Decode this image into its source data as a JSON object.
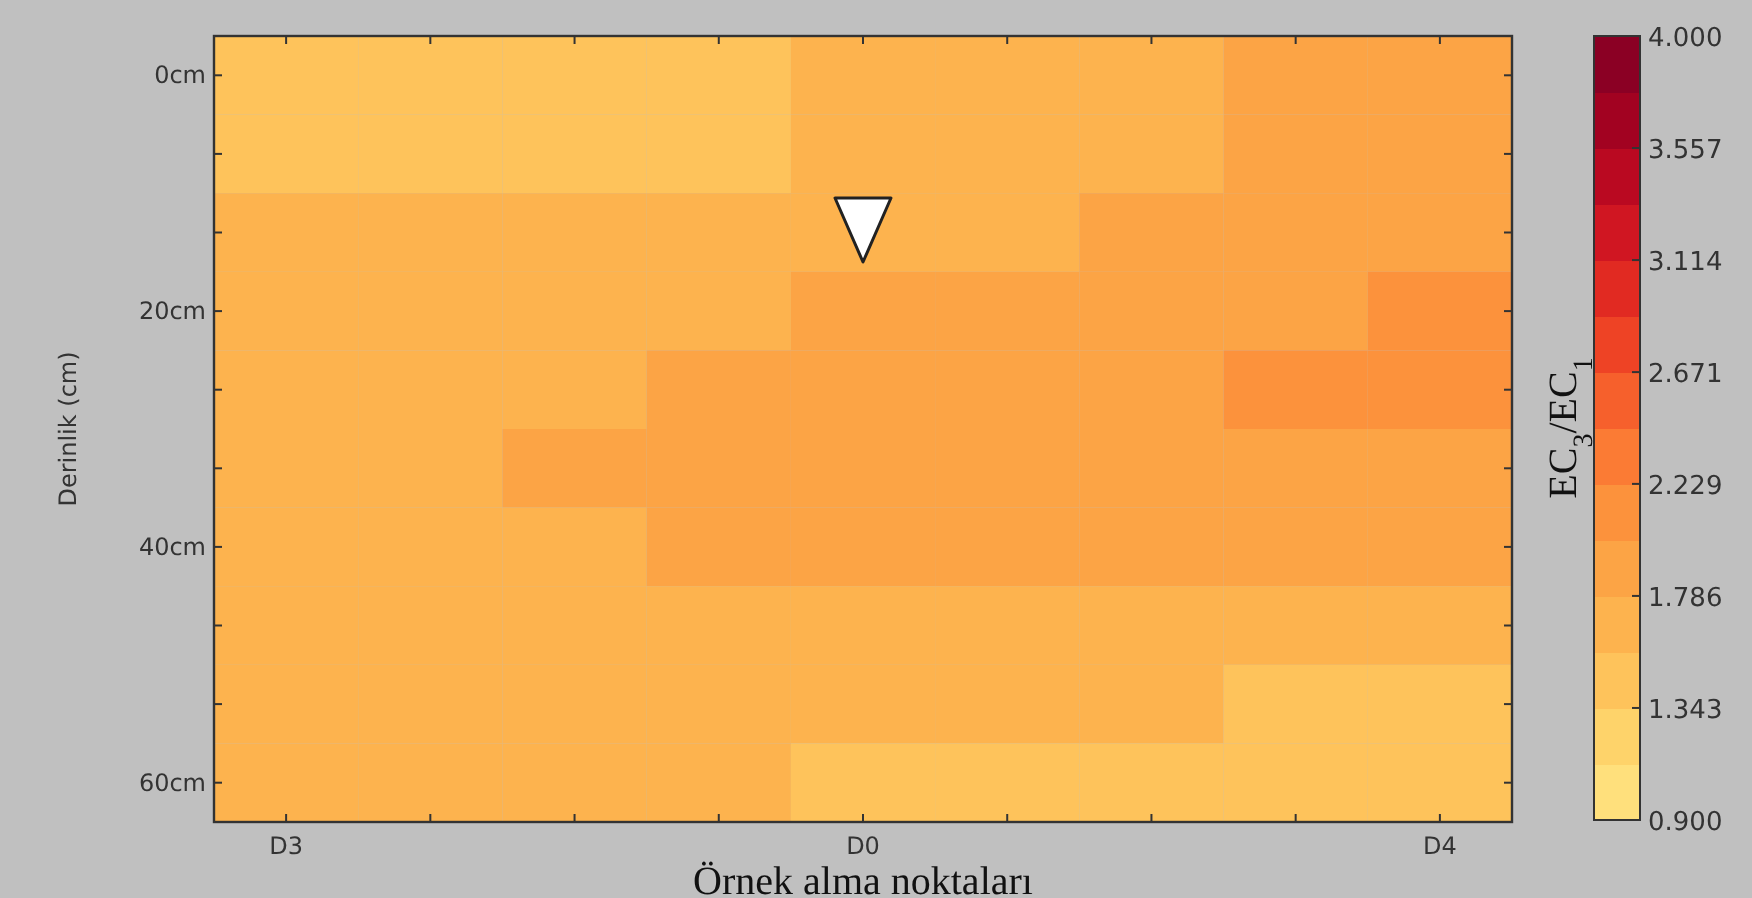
{
  "chart_data": {
    "type": "heatmap",
    "xlabel": "Örnek alma noktaları",
    "ylabel": "Derinlik (cm)",
    "clabel": "EC$_{3}$/EC$_{1}$",
    "categories": [
      "D3",
      null,
      null,
      null,
      "D0",
      null,
      null,
      null,
      "D4"
    ],
    "y_categories": [
      "0cm",
      null,
      null,
      "20cm",
      null,
      null,
      "40cm",
      null,
      null,
      "60cm"
    ],
    "cells": [
      [
        1.5,
        1.5,
        1.5,
        1.52,
        1.58,
        1.65,
        1.75,
        1.85,
        1.9
      ],
      [
        1.53,
        1.53,
        1.53,
        1.55,
        1.6,
        1.65,
        1.75,
        1.85,
        1.9
      ],
      [
        1.6,
        1.6,
        1.6,
        1.62,
        1.68,
        1.73,
        1.8,
        1.88,
        1.95
      ],
      [
        1.62,
        1.63,
        1.66,
        1.72,
        1.79,
        1.85,
        1.9,
        1.98,
        2.05
      ],
      [
        1.64,
        1.68,
        1.78,
        1.84,
        1.88,
        1.92,
        1.98,
        2.05,
        2.08
      ],
      [
        1.65,
        1.7,
        1.79,
        1.85,
        1.9,
        1.92,
        1.95,
        1.98,
        1.99
      ],
      [
        1.64,
        1.68,
        1.75,
        1.79,
        1.8,
        1.82,
        1.83,
        1.84,
        1.85
      ],
      [
        1.63,
        1.65,
        1.68,
        1.7,
        1.7,
        1.69,
        1.68,
        1.67,
        1.66
      ],
      [
        1.62,
        1.63,
        1.64,
        1.63,
        1.62,
        1.6,
        1.58,
        1.56,
        1.54
      ],
      [
        1.6,
        1.6,
        1.6,
        1.58,
        1.56,
        1.5,
        1.48,
        1.46,
        1.45
      ]
    ],
    "clim": [
      0.9,
      4.0
    ],
    "cticks": [
      {
        "value": 0.9,
        "label": "0.900"
      },
      {
        "value": 1.343,
        "label": "1.343"
      },
      {
        "value": 1.786,
        "label": "1.786"
      },
      {
        "value": 2.229,
        "label": "2.229"
      },
      {
        "value": 2.671,
        "label": "2.671"
      },
      {
        "value": 3.114,
        "label": "3.114"
      },
      {
        "value": 3.557,
        "label": "3.557"
      },
      {
        "value": 4.0,
        "label": "4.000"
      }
    ]
  }
}
